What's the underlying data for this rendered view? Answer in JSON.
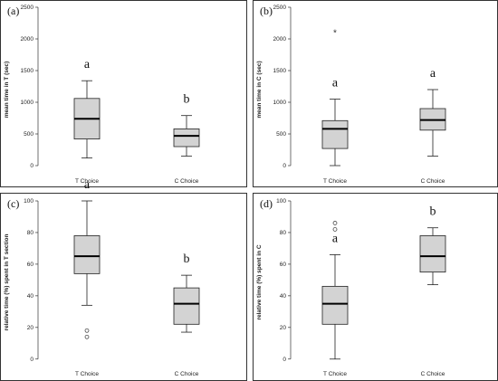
{
  "chart_data": [
    {
      "type": "box",
      "panel_label": "(a)",
      "ylabel": "mean time in T (sec)",
      "ylim": [
        -100,
        2500
      ],
      "yticks": [
        0,
        500,
        1000,
        1500,
        2000,
        2500
      ],
      "ytick_labels": [
        "0",
        "500",
        "1000",
        "1500",
        "2000",
        "2500"
      ],
      "categories": [
        "T Choice",
        "C Choice"
      ],
      "boxes": [
        {
          "min": 120,
          "q1": 420,
          "median": 740,
          "q3": 1060,
          "max": 1340,
          "outliers": [],
          "extremes": [],
          "letter": "a"
        },
        {
          "min": 150,
          "q1": 300,
          "median": 470,
          "q3": 580,
          "max": 790,
          "outliers": [],
          "extremes": [],
          "letter": "b"
        }
      ]
    },
    {
      "type": "box",
      "panel_label": "(b)",
      "ylabel": "mean time in C (sec)",
      "ylim": [
        -100,
        2500
      ],
      "yticks": [
        0,
        500,
        1000,
        1500,
        2000,
        2500
      ],
      "ytick_labels": [
        "0",
        "500",
        "1000",
        "1500",
        "2000",
        "2500"
      ],
      "categories": [
        "T Choice",
        "C Choice"
      ],
      "boxes": [
        {
          "min": 0,
          "q1": 270,
          "median": 580,
          "q3": 710,
          "max": 1050,
          "outliers": [],
          "extremes": [
            2110
          ],
          "letter": "a"
        },
        {
          "min": 150,
          "q1": 560,
          "median": 720,
          "q3": 900,
          "max": 1200,
          "outliers": [],
          "extremes": [],
          "letter": "a"
        }
      ]
    },
    {
      "type": "box",
      "panel_label": "(c)",
      "ylabel": "relative time (%) spent in T section",
      "ylim": [
        -3,
        100
      ],
      "yticks": [
        0,
        20,
        40,
        60,
        80,
        100
      ],
      "ytick_labels": [
        "0",
        "20",
        "40",
        "60",
        "80",
        "100"
      ],
      "categories": [
        "T Choice",
        "C Choice"
      ],
      "boxes": [
        {
          "min": 34,
          "q1": 54,
          "median": 65,
          "q3": 78,
          "max": 100,
          "outliers": [
            18,
            14
          ],
          "extremes": [],
          "letter": "a"
        },
        {
          "min": 17,
          "q1": 22,
          "median": 35,
          "q3": 45,
          "max": 53,
          "outliers": [],
          "extremes": [],
          "letter": "b"
        }
      ]
    },
    {
      "type": "box",
      "panel_label": "(d)",
      "ylabel": "relative time (%) spent in C",
      "ylim": [
        -3,
        100
      ],
      "yticks": [
        0,
        20,
        40,
        60,
        80,
        100
      ],
      "ytick_labels": [
        "0",
        "20",
        "40",
        "60",
        "80",
        "100"
      ],
      "categories": [
        "T Choice",
        "C Choice"
      ],
      "boxes": [
        {
          "min": 0,
          "q1": 22,
          "median": 35,
          "q3": 46,
          "max": 66,
          "outliers": [
            86,
            82
          ],
          "extremes": [],
          "letter": "a"
        },
        {
          "min": 47,
          "q1": 55,
          "median": 65,
          "q3": 78,
          "max": 83,
          "outliers": [],
          "extremes": [],
          "letter": "b"
        }
      ]
    }
  ]
}
